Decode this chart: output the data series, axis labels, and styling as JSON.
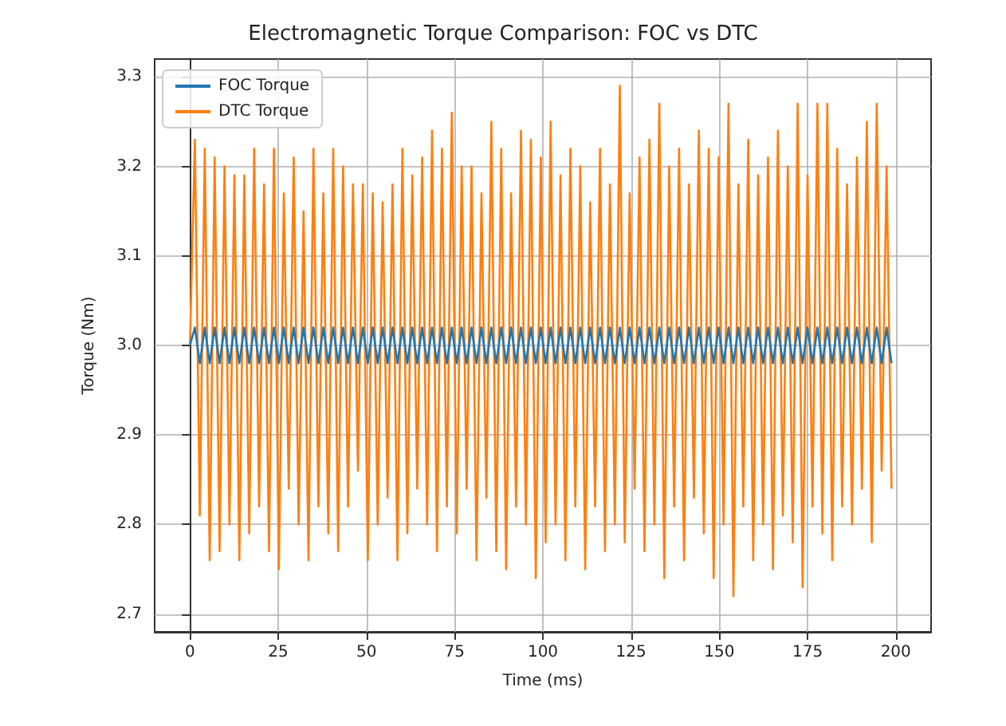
{
  "chart_data": {
    "type": "line",
    "title": "Electromagnetic Torque Comparison: FOC vs DTC",
    "xlabel": "Time (ms)",
    "ylabel": "Torque (Nm)",
    "x": [
      0,
      1.4,
      2.8,
      4.2,
      5.6,
      7,
      8.4,
      9.8,
      11.2,
      12.6,
      14,
      15.4,
      16.8,
      18.2,
      19.6,
      21,
      22.4,
      23.8,
      25.2,
      26.6,
      28,
      29.4,
      30.8,
      32.2,
      33.6,
      35,
      36.4,
      37.8,
      39.2,
      40.6,
      42,
      43.4,
      44.8,
      46.2,
      47.6,
      49,
      50.4,
      51.8,
      53.2,
      54.6,
      56,
      57.4,
      58.8,
      60.2,
      61.6,
      63,
      64.4,
      65.8,
      67.2,
      68.6,
      70,
      71.4,
      72.8,
      74.2,
      75.6,
      77,
      78.4,
      79.8,
      81.2,
      82.6,
      84,
      85.4,
      86.8,
      88.2,
      89.6,
      91,
      92.4,
      93.8,
      95.2,
      96.6,
      98,
      99.4,
      100.8,
      102.2,
      103.6,
      105,
      106.4,
      107.8,
      109.2,
      110.6,
      112,
      113.4,
      114.8,
      116.2,
      117.6,
      119,
      120.4,
      121.8,
      123.2,
      124.6,
      126,
      127.4,
      128.8,
      130.2,
      131.6,
      133,
      134.4,
      135.8,
      137.2,
      138.6,
      140,
      141.4,
      142.8,
      144.2,
      145.6,
      147,
      148.4,
      149.8,
      151.2,
      152.6,
      154,
      155.4,
      156.8,
      158.2,
      159.6,
      161,
      162.4,
      163.8,
      165.2,
      166.6,
      168,
      169.4,
      170.8,
      172.2,
      173.6,
      175,
      176.4,
      177.8,
      179.2,
      180.6,
      182,
      183.4,
      184.8,
      186.2,
      187.6,
      189,
      190.4,
      191.8,
      193.2,
      194.6,
      196,
      197.4,
      198.8
    ],
    "series": [
      {
        "name": "FOC Torque",
        "color": "#1f77b4",
        "values": [
          3.0,
          3.02,
          2.98,
          3.02,
          2.98,
          3.02,
          2.98,
          3.02,
          2.98,
          3.02,
          2.98,
          3.02,
          2.98,
          3.02,
          2.98,
          3.02,
          2.98,
          3.02,
          2.98,
          3.02,
          2.98,
          3.02,
          2.98,
          3.02,
          2.98,
          3.02,
          2.98,
          3.02,
          2.98,
          3.02,
          2.98,
          3.02,
          2.98,
          3.02,
          2.98,
          3.02,
          2.98,
          3.02,
          2.98,
          3.02,
          2.98,
          3.02,
          2.98,
          3.02,
          2.98,
          3.02,
          2.98,
          3.02,
          2.98,
          3.02,
          2.98,
          3.02,
          2.98,
          3.02,
          2.98,
          3.02,
          2.98,
          3.02,
          2.98,
          3.02,
          2.98,
          3.02,
          2.98,
          3.02,
          2.98,
          3.02,
          2.98,
          3.02,
          2.98,
          3.02,
          2.98,
          3.02,
          2.98,
          3.02,
          2.98,
          3.02,
          2.98,
          3.02,
          2.98,
          3.02,
          2.98,
          3.02,
          2.98,
          3.02,
          2.98,
          3.02,
          2.98,
          3.02,
          2.98,
          3.02,
          2.98,
          3.02,
          2.98,
          3.02,
          2.98,
          3.02,
          2.98,
          3.02,
          2.98,
          3.02,
          2.98,
          3.02,
          2.98,
          3.02,
          2.98,
          3.02,
          2.98,
          3.02,
          2.98,
          3.02,
          2.98,
          3.02,
          2.98,
          3.02,
          2.98,
          3.02,
          2.98,
          3.02,
          2.98,
          3.02,
          2.98,
          3.02,
          2.98,
          3.02,
          2.98,
          3.02,
          2.98,
          3.02,
          2.98,
          3.02,
          2.98,
          3.02,
          2.98,
          3.02,
          2.98,
          3.02,
          2.98,
          3.02,
          2.98,
          3.02,
          2.98,
          3.02,
          2.98
        ]
      },
      {
        "name": "DTC Torque",
        "color": "#ff7f0e",
        "values": [
          3.0,
          3.23,
          2.81,
          3.22,
          2.76,
          3.21,
          2.77,
          3.2,
          2.8,
          3.19,
          2.76,
          3.19,
          2.79,
          3.22,
          2.82,
          3.18,
          2.77,
          3.22,
          2.75,
          3.17,
          2.84,
          3.21,
          2.8,
          3.15,
          2.76,
          3.22,
          2.82,
          3.17,
          2.79,
          3.22,
          2.77,
          3.2,
          2.82,
          3.18,
          2.86,
          3.18,
          2.76,
          3.17,
          2.8,
          3.16,
          2.83,
          3.18,
          2.76,
          3.22,
          2.79,
          3.19,
          2.84,
          3.21,
          2.8,
          3.24,
          2.77,
          3.22,
          2.82,
          3.26,
          2.79,
          3.2,
          2.84,
          3.2,
          2.76,
          3.17,
          2.83,
          3.25,
          2.77,
          3.22,
          2.75,
          3.17,
          2.82,
          3.24,
          2.8,
          3.23,
          2.74,
          3.21,
          2.78,
          3.25,
          2.8,
          3.19,
          2.76,
          3.22,
          2.82,
          3.2,
          2.75,
          3.16,
          2.82,
          3.22,
          2.77,
          3.18,
          2.8,
          3.29,
          2.78,
          3.17,
          2.84,
          3.21,
          2.77,
          3.23,
          2.8,
          3.27,
          2.74,
          3.2,
          2.82,
          3.22,
          2.76,
          3.18,
          2.83,
          3.24,
          2.79,
          3.22,
          2.74,
          3.21,
          2.8,
          3.27,
          2.72,
          3.18,
          2.82,
          3.23,
          2.76,
          3.19,
          2.8,
          3.21,
          2.75,
          3.24,
          2.81,
          3.2,
          2.78,
          3.27,
          2.73,
          3.19,
          2.82,
          3.27,
          2.79,
          3.27,
          2.76,
          3.22,
          2.82,
          3.18,
          2.8,
          3.21,
          2.84,
          3.25,
          2.78,
          3.27,
          2.86,
          3.2,
          2.84
        ]
      }
    ],
    "xlim": [
      -10,
      210
    ],
    "xticks": [
      0,
      25,
      50,
      75,
      100,
      125,
      150,
      175,
      200
    ],
    "ylim": [
      2.68,
      3.32
    ],
    "yticks": [
      2.7,
      2.8,
      2.9,
      {
        "value": 3,
        "label": "3.0"
      },
      3.1,
      3.2,
      3.3
    ],
    "grid": true,
    "legend": "top left",
    "marker": "none",
    "line_style": "solid"
  }
}
